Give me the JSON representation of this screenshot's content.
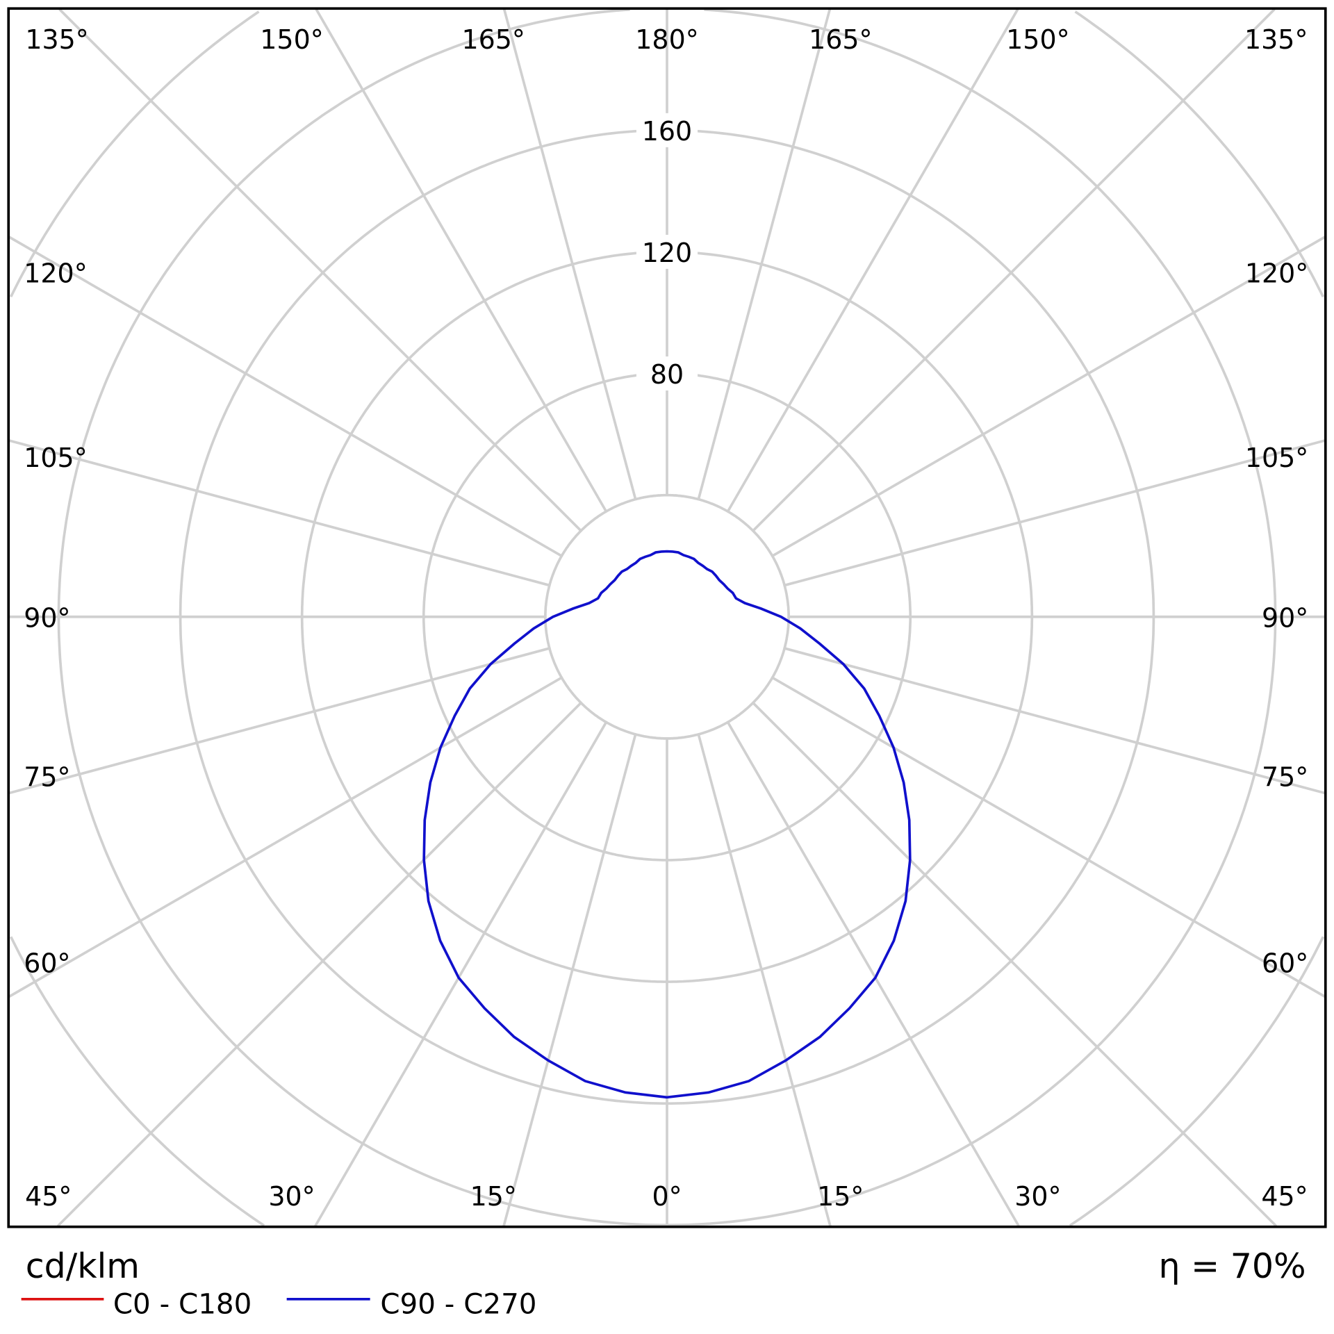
{
  "chart_data": {
    "type": "polar",
    "unit_label": "cd/klm",
    "efficiency_label": "η = 70%",
    "radial_ticks": [
      40,
      80,
      120,
      160,
      200,
      240
    ],
    "radial_tick_labels": [
      "80",
      "120",
      "160"
    ],
    "angle_labels": {
      "top": [
        "135°",
        "150°",
        "165°",
        "180°",
        "165°",
        "150°",
        "135°"
      ],
      "left": [
        "120°",
        "105°",
        "90°",
        "75°",
        "60°"
      ],
      "right": [
        "120°",
        "105°",
        "90°",
        "75°",
        "60°"
      ],
      "bottom": [
        "45°",
        "30°",
        "15°",
        "0°",
        "15°",
        "30°",
        "45°"
      ]
    },
    "grid": true,
    "legend_placement": "bottom-left",
    "series": [
      {
        "name": "C0 - C180",
        "color": "#dd1111",
        "angles": [],
        "values": []
      },
      {
        "name": "C90 - C270",
        "color": "#1010cc",
        "angles": [
          0,
          5,
          10,
          15,
          20,
          25,
          30,
          35,
          40,
          45,
          50,
          55,
          60,
          65,
          70,
          75,
          80,
          85,
          90,
          95,
          100,
          105,
          110,
          115,
          120,
          125,
          130,
          135,
          140,
          145,
          150,
          155,
          160,
          165,
          170,
          175,
          180
        ],
        "values": [
          158,
          157,
          155,
          151,
          147,
          142,
          137,
          130,
          122,
          113,
          104,
          95,
          86,
          77,
          69,
          60,
          51,
          44,
          37.5,
          31,
          26,
          23.5,
          23,
          22,
          21.5,
          21,
          21,
          21,
          20.5,
          20.5,
          20.5,
          21,
          21,
          21,
          21.5,
          21.5,
          21.5
        ]
      }
    ]
  }
}
